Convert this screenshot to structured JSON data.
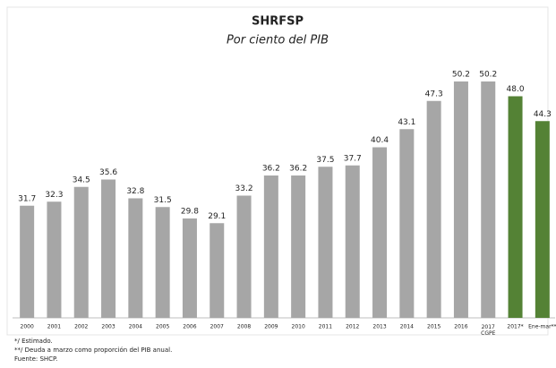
{
  "chart_data": {
    "type": "bar",
    "title": "SHRFSP",
    "subtitle": "Por ciento del PIB",
    "categories": [
      "2000",
      "2001",
      "2002",
      "2003",
      "2004",
      "2005",
      "2006",
      "2007",
      "2008",
      "2009",
      "2010",
      "2011",
      "2012",
      "2013",
      "2014",
      "2015",
      "2016",
      "2017\nCGPE",
      "2017*",
      "Ene-mar**"
    ],
    "values": [
      31.7,
      32.3,
      34.5,
      35.6,
      32.8,
      31.5,
      29.8,
      29.1,
      33.2,
      36.2,
      36.2,
      37.5,
      37.7,
      40.4,
      43.1,
      47.3,
      50.2,
      50.2,
      48.0,
      44.3
    ],
    "value_labels": [
      "31.7",
      "32.3",
      "34.5",
      "35.6",
      "32.8",
      "31.5",
      "29.8",
      "29.1",
      "33.2",
      "36.2",
      "36.2",
      "37.5",
      "37.7",
      "40.4",
      "43.1",
      "47.3",
      "50.2",
      "50.2",
      "48.0",
      "44.3"
    ],
    "colors": [
      "#a6a6a6",
      "#a6a6a6",
      "#a6a6a6",
      "#a6a6a6",
      "#a6a6a6",
      "#a6a6a6",
      "#a6a6a6",
      "#a6a6a6",
      "#a6a6a6",
      "#a6a6a6",
      "#a6a6a6",
      "#a6a6a6",
      "#a6a6a6",
      "#a6a6a6",
      "#a6a6a6",
      "#a6a6a6",
      "#a6a6a6",
      "#a6a6a6",
      "#548235",
      "#548235"
    ],
    "ylim": [
      15,
      52
    ],
    "notes": [
      "*/ Estimado.",
      "**/ Deuda a marzo como proporción del PIB anual.",
      "Fuente: SHCP."
    ]
  }
}
